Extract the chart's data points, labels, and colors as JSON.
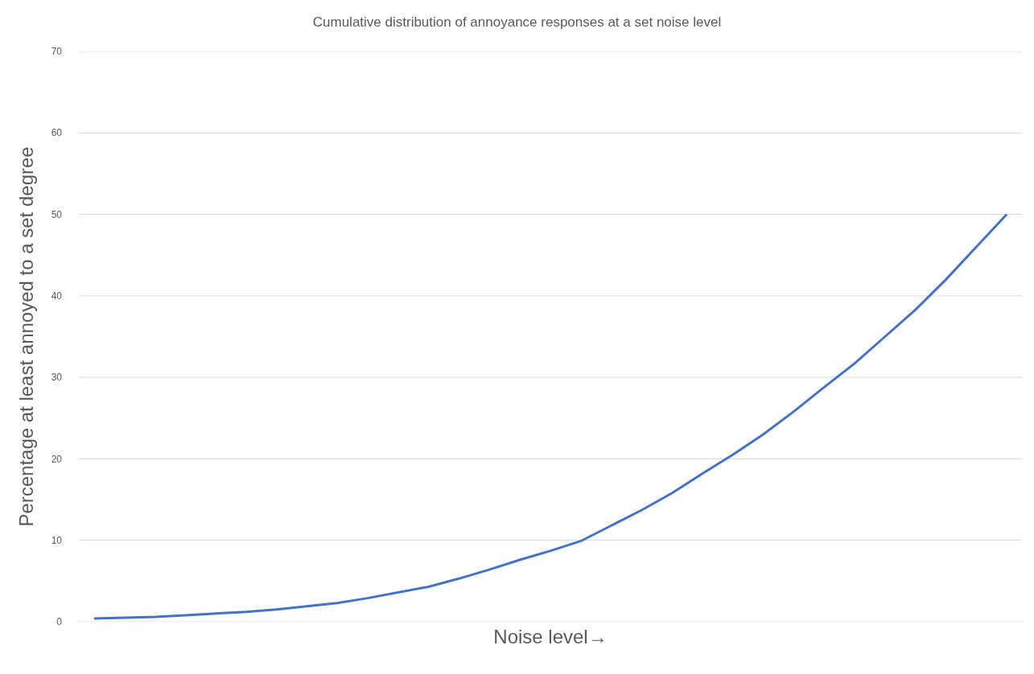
{
  "chart_data": {
    "type": "line",
    "title": "Cumulative distribution of annoyance responses at a set noise level",
    "xlabel": "Noise level→",
    "ylabel": "Percentage at least annoyed to a set degree",
    "categories": [
      null,
      null,
      null,
      null,
      null,
      null,
      null,
      null,
      null,
      null,
      null,
      null,
      null,
      null,
      null,
      null,
      null,
      null,
      null,
      null,
      null,
      null,
      null,
      null,
      null,
      null,
      null,
      null,
      null,
      null,
      null
    ],
    "series": [
      {
        "color": "#4472c4",
        "values": [
          0.4,
          0.5,
          0.6,
          0.8,
          1.0,
          1.2,
          1.5,
          1.9,
          2.3,
          2.9,
          3.6,
          4.3,
          5.3,
          6.4,
          7.6,
          8.7,
          9.9,
          11.8,
          13.7,
          15.8,
          18.2,
          20.5,
          23.0,
          25.8,
          28.8,
          31.7,
          35.0,
          38.3,
          42.0,
          46.0,
          50.0
        ]
      }
    ],
    "ylim": [
      0,
      70
    ],
    "yticks": [
      0,
      10,
      20,
      30,
      40,
      50,
      60,
      70
    ],
    "grid": "y",
    "marker": "none",
    "line_style": "solid",
    "tick_labels": "y"
  }
}
